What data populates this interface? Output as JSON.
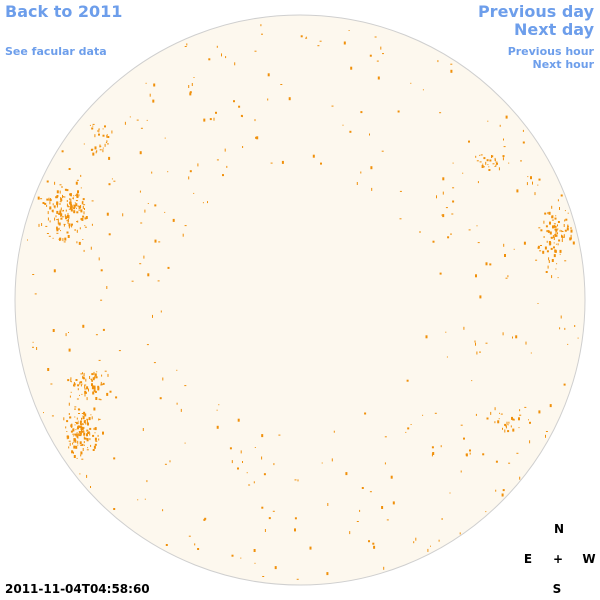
{
  "nav": {
    "back": "Back to 2011",
    "facular": "See facular data",
    "previous_day": "Previous day",
    "next_day": "Next day",
    "previous_hour": "Previous hour",
    "next_hour": "Next hour"
  },
  "timestamp": "2011-11-04T04:58:60",
  "compass": {
    "north": "N",
    "east": "E",
    "center": "+",
    "west": "W",
    "south": "S"
  }
}
